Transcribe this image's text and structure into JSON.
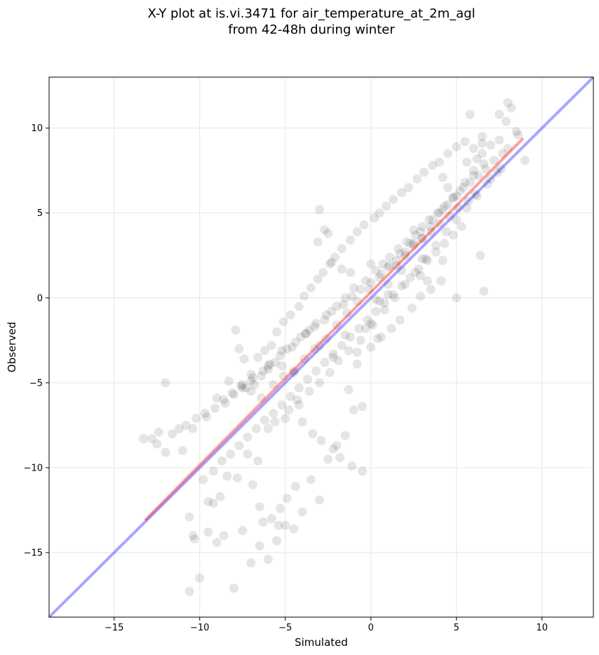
{
  "chart_data": {
    "type": "scatter",
    "title_line1": "X-Y plot at is.vi.3471 for air_temperature_at_2m_agl",
    "title_line2": "from 42-48h during winter",
    "xlabel": "Simulated",
    "ylabel": "Observed",
    "xlim": [
      -18.8,
      13.0
    ],
    "ylim": [
      -18.8,
      13.0
    ],
    "xticks": [
      -15,
      -10,
      -5,
      0,
      5,
      10
    ],
    "yticks": [
      -15,
      -10,
      -5,
      0,
      5,
      10
    ],
    "xtick_labels": [
      "−15",
      "−10",
      "−5",
      "0",
      "5",
      "10"
    ],
    "ytick_labels": [
      "−15",
      "−10",
      "−5",
      "0",
      "5",
      "10"
    ],
    "grid": true,
    "colors": {
      "points": "#000000",
      "identity_line": "#0000ff",
      "fit_line": "#ff0000"
    },
    "points": {
      "x": [
        -13.3,
        -12.5,
        -12.0,
        -11.6,
        -12.4,
        -10.6,
        -10.0,
        -10.3,
        -9.5,
        -9.0,
        -8.6,
        -8.0,
        -7.5,
        -7.0,
        -6.5,
        -6.0,
        -5.5,
        -5.0,
        -4.5,
        -4.0,
        -3.5,
        -3.0,
        -2.5,
        -2.0,
        -1.5,
        -1.0,
        -0.5,
        0.0,
        0.5,
        1.0,
        1.5,
        2.0,
        2.5,
        3.0,
        3.5,
        4.0,
        4.5,
        5.0,
        5.5,
        6.0,
        6.5,
        7.0,
        7.5,
        8.0,
        8.5,
        9.0,
        5.8,
        6.0,
        7.9,
        8.2,
        8.6,
        6.5,
        6.4,
        6.6,
        5.0,
        4.2,
        3.0,
        2.5,
        1.8,
        1.0,
        0.3,
        -0.3,
        -0.8,
        -1.5,
        -2.2,
        -3.0,
        -3.8,
        -4.5,
        -5.2,
        -6.0,
        -6.8,
        -7.5,
        -8.3,
        -9.0,
        -9.6,
        -10.4,
        -11.0,
        -12.0,
        -12.8,
        -10.6,
        -10.4,
        -9.5,
        -9.2,
        -8.8,
        -8.4,
        -7.8,
        -7.2,
        -6.6,
        -6.0,
        -5.6,
        -5.0,
        -4.8,
        -4.2,
        -3.6,
        -3.0,
        -2.4,
        -1.9,
        -1.3,
        -0.6,
        0.1,
        0.8,
        1.4,
        2.0,
        2.6,
        3.2,
        3.8,
        4.4,
        5.0,
        5.6,
        6.2,
        6.8,
        7.4,
        -3.1,
        -3.0,
        -2.7,
        -2.5,
        -2.3,
        -1.7,
        -1.2,
        0.0,
        0.4,
        -0.8,
        -1.3,
        2.9,
        3.3,
        4.5,
        4.2,
        6.5,
        7.5,
        8.0,
        6.2,
        5.6,
        -6.9,
        -6.5,
        -6.3,
        -5.8,
        -5.4,
        -5.3,
        -4.9,
        -4.4,
        -7.9,
        -7.7,
        -7.4,
        -7.0,
        -6.6,
        -6.2,
        -5.8,
        -5.5,
        -5.1,
        -4.7,
        -4.2,
        -3.9,
        -3.5,
        -3.1,
        -2.8,
        -2.4,
        -2.1,
        -1.7,
        -1.2,
        -0.8,
        -0.4,
        0.2,
        0.5,
        0.9,
        1.3,
        1.8,
        2.2,
        2.7,
        3.1,
        3.6,
        4.0,
        4.5,
        5.0,
        5.5,
        -8.5,
        -8.0,
        -7.3,
        -7.0,
        -6.4,
        -6.0,
        -5.6,
        -5.2,
        -4.6,
        -4.1,
        -3.6,
        -3.2,
        -2.6,
        -2.0,
        -1.5,
        -1.0,
        -0.3,
        0.3,
        0.7,
        1.1,
        1.6,
        2.1,
        2.6,
        3.0,
        3.4,
        3.9,
        4.3,
        4.8,
        5.2,
        5.8,
        6.3,
        6.7,
        7.2,
        7.7,
        -9.8,
        -9.2,
        -8.7,
        -8.2,
        -7.7,
        -7.2,
        -6.7,
        -6.2,
        -5.7,
        -5.2,
        -4.7,
        -4.2,
        -3.7,
        -3.2,
        -2.7,
        -2.2,
        -1.7,
        -1.2,
        -0.7,
        -0.2,
        0.3,
        0.8,
        1.3,
        1.8,
        2.3,
        2.8,
        3.3,
        3.8,
        4.3,
        4.8,
        5.3,
        -4.3,
        -4.0,
        -3.4,
        -2.9,
        -2.2,
        -1.8,
        -1.1,
        -0.5,
        0.0,
        0.6,
        1.2,
        1.7,
        2.4,
        2.9,
        3.5,
        4.1,
        -7.6,
        -7.0,
        -6.4,
        -5.7,
        -5.1,
        -4.5,
        -3.9,
        -3.3,
        -2.6,
        -2.0,
        -1.4,
        -0.8,
        -0.1,
        0.5,
        1.1,
        1.7,
        2.3,
        2.9,
        3.6,
        4.2,
        4.8,
        5.4,
        6.0,
        6.6,
        -11.2,
        -10.8,
        -10.2,
        -9.7,
        -9.1,
        -8.6,
        -8.1,
        -7.5,
        -6.9,
        -6.3,
        -5.9,
        -5.3,
        -4.9,
        -4.4,
        -3.8,
        -3.3,
        -2.7,
        -2.3,
        -1.6,
        -1.1,
        -0.6,
        0.0,
        0.6,
        1.0,
        1.5,
        2.0,
        2.5,
        3.0,
        3.5,
        4.0,
        4.6,
        5.1,
        5.7,
        6.1,
        7.0,
        7.6
      ],
      "y": [
        -8.3,
        -8.6,
        -9.1,
        -8.0,
        -7.9,
        -17.3,
        -16.5,
        -14.2,
        -13.8,
        -14.4,
        -14.0,
        -17.1,
        -13.7,
        -15.6,
        -14.6,
        -15.4,
        -14.3,
        -13.4,
        -13.6,
        -12.6,
        -10.7,
        -11.9,
        -9.5,
        -8.7,
        -8.1,
        -6.6,
        -6.4,
        -1.5,
        -0.2,
        0.8,
        1.9,
        2.5,
        3.2,
        3.5,
        4.2,
        5.0,
        5.5,
        6.0,
        6.8,
        7.5,
        8.5,
        9.0,
        10.8,
        11.5,
        9.8,
        8.1,
        10.8,
        8.8,
        10.4,
        11.2,
        9.6,
        9.1,
        2.5,
        0.4,
        0.0,
        2.2,
        2.3,
        4.0,
        1.6,
        0.2,
        -0.1,
        -1.8,
        -3.2,
        -2.2,
        -3.5,
        -2.8,
        -2.1,
        -4.4,
        -4.0,
        -4.2,
        -5.1,
        -5.3,
        -4.9,
        -5.9,
        -7.0,
        -7.7,
        -9.0,
        -5.0,
        -8.3,
        -12.9,
        -14.0,
        -12.0,
        -12.1,
        -11.7,
        -10.5,
        -10.6,
        -9.2,
        -9.6,
        -7.7,
        -7.3,
        -7.1,
        -6.6,
        -6.3,
        -5.5,
        -5.0,
        -4.4,
        -3.7,
        -3.1,
        -2.5,
        -1.6,
        -0.7,
        0.0,
        0.8,
        1.5,
        2.3,
        3.1,
        3.9,
        4.6,
        5.3,
        6.0,
        6.7,
        7.4,
        3.3,
        5.2,
        4.0,
        3.8,
        2.1,
        1.7,
        1.5,
        2.0,
        -2.4,
        -3.9,
        -5.4,
        1.3,
        1.0,
        6.5,
        7.1,
        9.5,
        9.3,
        8.8,
        8.2,
        8.0,
        -11.0,
        -12.3,
        -13.2,
        -13.0,
        -13.4,
        -12.4,
        -11.8,
        -11.1,
        -1.9,
        -3.0,
        -3.6,
        -4.5,
        -3.5,
        -3.1,
        -2.8,
        -2.0,
        -1.4,
        -1.0,
        -0.5,
        0.1,
        0.6,
        1.1,
        1.5,
        2.0,
        2.4,
        2.9,
        3.4,
        3.9,
        4.3,
        4.7,
        5.0,
        5.4,
        5.8,
        6.2,
        6.5,
        7.0,
        7.4,
        7.8,
        8.0,
        8.5,
        8.9,
        9.2,
        -6.2,
        -5.7,
        -5.3,
        -4.9,
        -4.6,
        -4.0,
        -3.8,
        -3.1,
        -2.9,
        -2.3,
        -1.9,
        -1.5,
        -1.0,
        -0.5,
        0.0,
        0.6,
        1.0,
        1.6,
        2.0,
        2.4,
        2.9,
        3.3,
        3.7,
        4.2,
        4.6,
        5.0,
        5.4,
        5.9,
        6.3,
        6.8,
        7.2,
        7.6,
        8.1,
        8.5,
        -10.7,
        -10.2,
        -9.6,
        -9.2,
        -8.7,
        -8.2,
        -7.7,
        -7.2,
        -6.8,
        -6.3,
        -5.8,
        -5.3,
        -4.8,
        -4.3,
        -3.8,
        -3.3,
        -2.8,
        -2.3,
        -1.8,
        -1.3,
        -0.8,
        -0.3,
        0.2,
        0.7,
        1.2,
        1.7,
        2.2,
        2.7,
        3.2,
        3.7,
        4.2,
        -6.0,
        -7.3,
        -8.0,
        -8.4,
        -8.9,
        -9.4,
        -9.9,
        -10.2,
        -2.9,
        -2.3,
        -1.8,
        -1.3,
        -0.6,
        0.1,
        0.5,
        1.0,
        -5.2,
        -5.5,
        -5.9,
        -5.1,
        -4.6,
        -4.3,
        -3.6,
        -3.0,
        -2.4,
        -1.6,
        -0.9,
        -0.2,
        0.5,
        1.2,
        1.9,
        2.6,
        3.2,
        3.9,
        4.6,
        5.2,
        5.9,
        6.5,
        7.2,
        7.9,
        -7.7,
        -7.5,
        -7.1,
        -6.8,
        -6.5,
        -6.0,
        -5.6,
        -5.1,
        -4.7,
        -4.3,
        -3.9,
        -3.4,
        -3.0,
        -2.6,
        -2.1,
        -1.7,
        -1.3,
        -0.8,
        -0.4,
        0.1,
        0.5,
        0.9,
        1.4,
        1.8,
        2.2,
        2.7,
        3.1,
        3.5,
        3.9,
        4.4,
        4.8,
        5.3,
        5.7,
        6.1,
        7.0,
        7.6
      ]
    },
    "fit_line": {
      "x": [
        -13.2,
        8.9
      ],
      "y": [
        -13.1,
        9.4
      ]
    },
    "identity_line": {
      "x": [
        -18.8,
        13.0
      ],
      "y": [
        -18.8,
        13.0
      ]
    }
  }
}
